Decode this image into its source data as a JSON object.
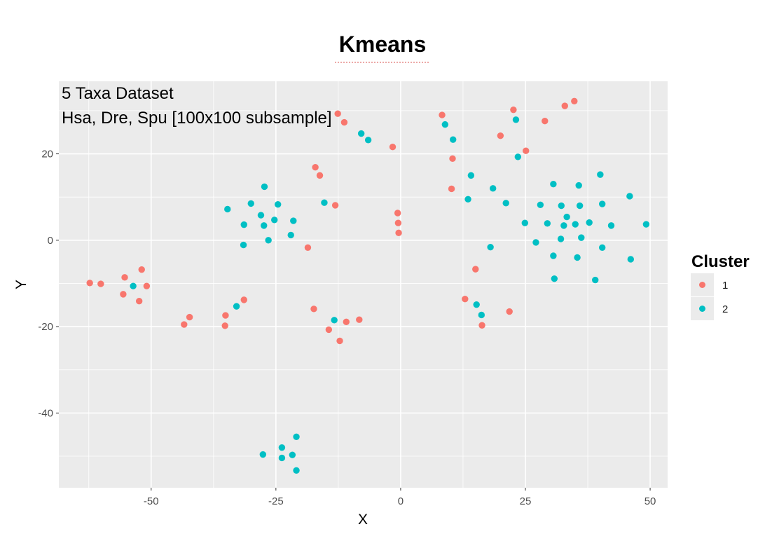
{
  "chart_data": {
    "type": "scatter",
    "title": "Kmeans",
    "annotations": [
      "5 Taxa Dataset",
      "Hsa, Dre, Spu [100x100 subsample]"
    ],
    "xlabel": "X",
    "ylabel": "Y",
    "xlim": [
      -68.5,
      53.5
    ],
    "ylim": [
      -57.3,
      36.8
    ],
    "xticks": [
      -50,
      -25,
      0,
      25,
      50
    ],
    "yticks": [
      -40,
      -20,
      0,
      20
    ],
    "grid": true,
    "legend": {
      "title": "Cluster",
      "position": "right",
      "entries": [
        "1",
        "2"
      ]
    },
    "colors": {
      "1": "#F8766D",
      "2": "#00BFC4",
      "panel": "#EBEBEB",
      "grid": "#FFFFFF"
    },
    "series": [
      {
        "name": "1",
        "color": "#F8766D",
        "points": [
          [
            -62.3,
            -9.9
          ],
          [
            -60.1,
            -10.1
          ],
          [
            -55.3,
            -8.6
          ],
          [
            -55.6,
            -12.5
          ],
          [
            -51.9,
            -6.8
          ],
          [
            -52.4,
            -14.1
          ],
          [
            -50.9,
            -10.6
          ],
          [
            -43.4,
            -19.5
          ],
          [
            -42.3,
            -17.8
          ],
          [
            -35.1,
            -17.4
          ],
          [
            -35.2,
            -19.8
          ],
          [
            -31.4,
            -13.8
          ],
          [
            -18.6,
            -1.7
          ],
          [
            -17.4,
            -15.9
          ],
          [
            -17.1,
            16.9
          ],
          [
            -16.2,
            15.0
          ],
          [
            -13.1,
            8.1
          ],
          [
            -14.4,
            -20.7
          ],
          [
            -12.2,
            -23.3
          ],
          [
            -10.9,
            -18.9
          ],
          [
            -8.3,
            -18.4
          ],
          [
            -12.6,
            29.3
          ],
          [
            -11.3,
            27.3
          ],
          [
            -1.6,
            21.6
          ],
          [
            -0.6,
            6.3
          ],
          [
            -0.5,
            4.0
          ],
          [
            -0.4,
            1.7
          ],
          [
            8.3,
            29.0
          ],
          [
            10.2,
            11.9
          ],
          [
            10.4,
            18.9
          ],
          [
            12.9,
            -13.6
          ],
          [
            15.0,
            -6.7
          ],
          [
            16.3,
            -19.7
          ],
          [
            20.0,
            24.2
          ],
          [
            21.8,
            -16.5
          ],
          [
            22.6,
            30.2
          ],
          [
            25.1,
            20.7
          ],
          [
            28.9,
            27.6
          ],
          [
            32.9,
            31.1
          ],
          [
            34.8,
            32.2
          ]
        ]
      },
      {
        "name": "2",
        "color": "#00BFC4",
        "points": [
          [
            -53.6,
            -10.6
          ],
          [
            -34.7,
            7.2
          ],
          [
            -32.9,
            -15.3
          ],
          [
            -31.4,
            3.6
          ],
          [
            -31.5,
            -1.1
          ],
          [
            -30.0,
            8.5
          ],
          [
            -28.0,
            5.8
          ],
          [
            -27.4,
            3.4
          ],
          [
            -27.3,
            12.4
          ],
          [
            -26.5,
            0.0
          ],
          [
            -25.3,
            4.7
          ],
          [
            -24.6,
            8.3
          ],
          [
            -22.0,
            1.2
          ],
          [
            -21.5,
            4.5
          ],
          [
            -15.3,
            8.7
          ],
          [
            -13.3,
            -18.5
          ],
          [
            -7.9,
            24.7
          ],
          [
            -6.5,
            23.2
          ],
          [
            -27.6,
            -49.6
          ],
          [
            -23.8,
            -48.0
          ],
          [
            -23.8,
            -50.4
          ],
          [
            -21.7,
            -49.7
          ],
          [
            -20.9,
            -45.5
          ],
          [
            -20.9,
            -53.3
          ],
          [
            8.9,
            26.8
          ],
          [
            10.5,
            23.3
          ],
          [
            13.5,
            9.5
          ],
          [
            14.1,
            15.0
          ],
          [
            15.2,
            -14.9
          ],
          [
            16.2,
            -17.3
          ],
          [
            18.0,
            -1.6
          ],
          [
            18.5,
            12.0
          ],
          [
            21.1,
            8.6
          ],
          [
            23.1,
            27.9
          ],
          [
            23.5,
            19.3
          ],
          [
            24.9,
            4.0
          ],
          [
            27.1,
            -0.5
          ],
          [
            28.0,
            8.2
          ],
          [
            29.4,
            3.9
          ],
          [
            30.6,
            13.0
          ],
          [
            30.6,
            -3.6
          ],
          [
            30.8,
            -8.9
          ],
          [
            32.1,
            0.3
          ],
          [
            32.2,
            8.0
          ],
          [
            32.7,
            3.4
          ],
          [
            33.3,
            5.4
          ],
          [
            35.0,
            3.7
          ],
          [
            35.4,
            -4.0
          ],
          [
            35.7,
            12.7
          ],
          [
            35.9,
            8.0
          ],
          [
            36.2,
            0.6
          ],
          [
            37.8,
            4.1
          ],
          [
            39.0,
            -9.2
          ],
          [
            40.0,
            15.2
          ],
          [
            40.4,
            8.4
          ],
          [
            40.4,
            -1.7
          ],
          [
            42.2,
            3.4
          ],
          [
            45.9,
            10.2
          ],
          [
            46.1,
            -4.4
          ],
          [
            49.2,
            3.7
          ]
        ]
      }
    ]
  }
}
